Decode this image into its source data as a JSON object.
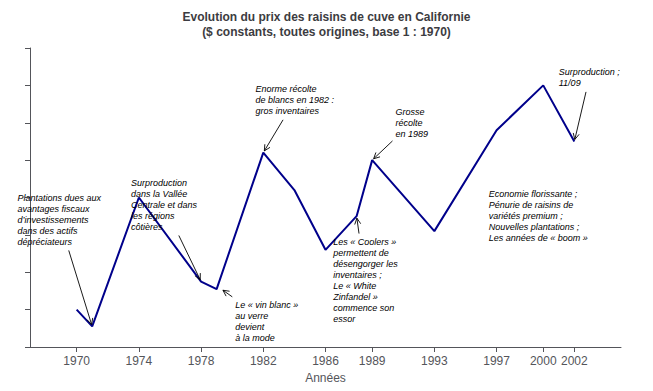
{
  "chart_data": {
    "type": "line",
    "title": "Evolution du prix des raisins de cuve en Californie\n($ constants, toutes origines, base 1 : 1970)",
    "xlabel": "Années",
    "x": [
      1970,
      1971,
      1974,
      1978,
      1979,
      1982,
      1984,
      1986,
      1988,
      1989,
      1993,
      1997,
      2000,
      2002
    ],
    "values": [
      1.0,
      0.55,
      4.0,
      1.75,
      1.55,
      5.2,
      4.2,
      2.6,
      3.5,
      5.0,
      3.1,
      5.8,
      7.0,
      5.5
    ],
    "color": "#00008B",
    "xlim": [
      1967,
      2005
    ],
    "ylim": [
      0,
      8
    ],
    "xticks": [
      1970,
      1974,
      1978,
      1982,
      1986,
      1989,
      1993,
      1997,
      2000,
      2002
    ],
    "yticks": [
      0,
      1,
      2,
      3,
      4,
      5,
      6,
      7,
      8
    ],
    "grid": false,
    "tick_labels": "x",
    "annotations": [
      {
        "text": "Plantations dues aux\navantages fiscaux\nd’investissements\ndans des actifs\ndépréciateurs",
        "xy": [
          1971,
          0.55
        ],
        "xytext": [
          1966.2,
          3.4
        ],
        "arrow": true
      },
      {
        "text": "Surproduction\ndans la Vallée\nCentrale et dans\nles régions\ncôtières",
        "xy": [
          1978,
          1.75
        ],
        "xytext": [
          1973.5,
          3.8
        ],
        "arrow": true
      },
      {
        "text": "Enorme récolte\nde blancs en 1982 :\ngros inventaires",
        "xy": [
          1982,
          5.2
        ],
        "xytext": [
          1981.5,
          6.6
        ],
        "arrow": true
      },
      {
        "text": "Le « vin blanc »\nau verre\ndevient\nà la mode",
        "xy": [
          1979.3,
          1.55
        ],
        "xytext": [
          1980.2,
          0.1
        ],
        "arrow": true
      },
      {
        "text": "Les « Coolers »\npermettent de\ndésengorger les\ninventaires ;\nLe « White\nZinfandel »\ncommence son\nessor",
        "xy": [
          1988.0,
          3.5
        ],
        "xytext": [
          1986.5,
          0.6
        ],
        "arrow": true
      },
      {
        "text": "Grosse\nrécolte\nen 1989",
        "xy": [
          1989,
          5.0
        ],
        "xytext": [
          1990.5,
          6.0
        ],
        "arrow": true
      },
      {
        "text": "Economie florissante ;\nPénurie de raisins de\nvariétés premium ;\nNouvelles plantations ;\nLes années de « boom »",
        "xy": [
          1997,
          5.8
        ],
        "xytext": [
          1996.5,
          3.5
        ],
        "arrow": false
      },
      {
        "text": "Surproduction ;\n11/09",
        "xy": [
          2002,
          5.5
        ],
        "xytext": [
          2001.0,
          7.2
        ],
        "arrow": true
      }
    ]
  }
}
